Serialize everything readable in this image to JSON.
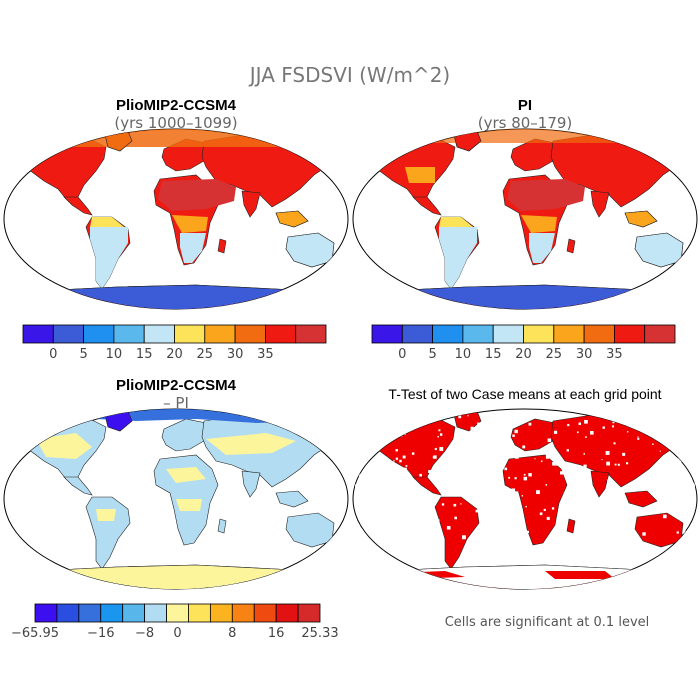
{
  "figure": {
    "title": "JJA FSDSVI (W/m^2)"
  },
  "panels": [
    {
      "id": "plio",
      "title": "PlioMIP2-CCSM4",
      "subtitle": "(yrs 1000–1099)",
      "colorbar": {
        "colors": [
          "#3a16e8",
          "#3c5bd6",
          "#1f8ff0",
          "#5ab8ec",
          "#c2e6f5",
          "#fce35a",
          "#fba51c",
          "#f16b10",
          "#ef1b12",
          "#d63234"
        ],
        "tick_labels": [
          "0",
          "5",
          "10",
          "15",
          "20",
          "25",
          "30",
          "35"
        ]
      }
    },
    {
      "id": "pi",
      "title": "PI",
      "subtitle": "(yrs 80–179)",
      "colorbar": {
        "colors": [
          "#3a16e8",
          "#3c5bd6",
          "#1f8ff0",
          "#5ab8ec",
          "#c2e6f5",
          "#fce35a",
          "#fba51c",
          "#f16b10",
          "#ef1b12",
          "#d63234"
        ],
        "tick_labels": [
          "0",
          "5",
          "10",
          "15",
          "20",
          "25",
          "30",
          "35"
        ]
      }
    },
    {
      "id": "diff",
      "title": "PlioMIP2-CCSM4",
      "subtitle": "– PI",
      "colorbar": {
        "colors": [
          "#3b0ff0",
          "#2a4fe0",
          "#3670dc",
          "#1b96ef",
          "#59b6ea",
          "#b2dcf2",
          "#fdf59c",
          "#fde35a",
          "#fbb320",
          "#f68314",
          "#ef4b10",
          "#e21212",
          "#d62a2a"
        ],
        "tick_labels": [
          "−65.95",
          "−16",
          "−8",
          "0",
          "8",
          "16",
          "25.33"
        ]
      }
    },
    {
      "id": "ttest",
      "title": "T-Test of two Case means at each grid point",
      "footnote": "Cells are significant at 0.1 level",
      "fill_color": "#ee0000"
    }
  ]
}
